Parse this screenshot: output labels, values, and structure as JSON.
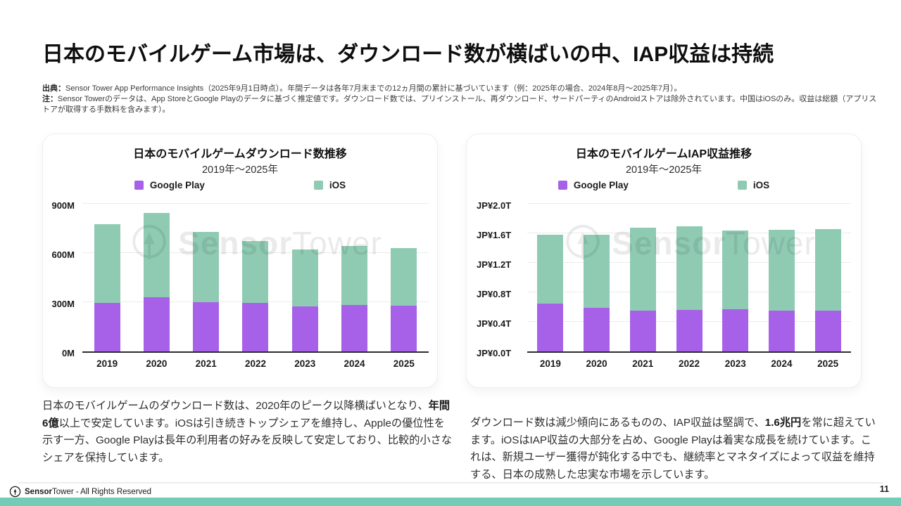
{
  "page": {
    "title": "日本のモバイルゲーム市場は、ダウンロード数が横ばいの中、IAP収益は持続",
    "notes": {
      "source_label": "出典：",
      "source_text": "Sensor Tower App Performance Insights（2025年9月1日時点）。年間データは各年7月末までの12ヵ月間の累計に基づいています（例：2025年の場合、2024年8月～2025年7月）。",
      "note_label": "注：",
      "note_text": "Sensor Towerのデータは、App StoreとGoogle Playのデータに基づく推定値です。ダウンロード数では、プリインストール、再ダウンロード、サードパーティのAndroidストアは除外されています。中国はiOSのみ。収益は総額（アプリストアが取得する手数料を含みます）。"
    },
    "watermark": {
      "bold": "Sensor",
      "light": "Tower"
    },
    "footer": {
      "brand_bold": "Sensor",
      "brand_light": "Tower",
      "rights": "- All Rights Reserved",
      "page_number": "11"
    },
    "colors": {
      "google_play": "#A761E8",
      "ios": "#8FCBB3",
      "bottom_bar": "#73CCB6"
    }
  },
  "paragraphs": {
    "left": {
      "pre": "日本のモバイルゲームのダウンロード数は、2020年のピーク以降横ばいとなり、",
      "bold": "年間6億",
      "post": "以上で安定しています。iOSは引き続きトップシェアを維持し、Appleの優位性を示す一方、Google Playは長年の利用者の好みを反映して安定しており、比較的小さなシェアを保持しています。"
    },
    "right": {
      "pre": "ダウンロード数は減少傾向にあるものの、IAP収益は堅調で、",
      "bold": "1.6兆円",
      "post": "を常に超えています。iOSはIAP収益の大部分を占め、Google Playは着実な成長を続けています。これは、新規ユーザー獲得が鈍化する中でも、継続率とマネタイズによって収益を維持する、日本の成熟した忠実な市場を示しています。"
    }
  },
  "chart_data": [
    {
      "type": "bar",
      "stacked": true,
      "title": "日本のモバイルゲームダウンロード数推移",
      "subtitle": "2019年～2025年",
      "categories": [
        "2019",
        "2020",
        "2021",
        "2022",
        "2023",
        "2024",
        "2025"
      ],
      "series": [
        {
          "name": "Google Play",
          "color": "#A761E8",
          "values": [
            295,
            330,
            300,
            295,
            275,
            285,
            280
          ]
        },
        {
          "name": "iOS",
          "color": "#8FCBB3",
          "values": [
            480,
            515,
            430,
            380,
            345,
            360,
            350
          ]
        }
      ],
      "unit": "M downloads",
      "ylim": [
        0,
        900
      ],
      "yticks": [
        {
          "label": "0M",
          "value": 0
        },
        {
          "label": "300M",
          "value": 300
        },
        {
          "label": "600M",
          "value": 600
        },
        {
          "label": "900M",
          "value": 900
        }
      ],
      "legend_position": "top",
      "grid": true
    },
    {
      "type": "bar",
      "stacked": true,
      "title": "日本のモバイルゲームIAP収益推移",
      "subtitle": "2019年～2025年",
      "categories": [
        "2019",
        "2020",
        "2021",
        "2022",
        "2023",
        "2024",
        "2025"
      ],
      "series": [
        {
          "name": "Google Play",
          "color": "#A761E8",
          "values": [
            0.65,
            0.59,
            0.55,
            0.56,
            0.57,
            0.55,
            0.55
          ]
        },
        {
          "name": "iOS",
          "color": "#8FCBB3",
          "values": [
            0.93,
            0.99,
            1.13,
            1.14,
            1.07,
            1.1,
            1.11
          ]
        }
      ],
      "unit": "JP¥ trillion",
      "ylim": [
        0,
        2.0
      ],
      "yticks": [
        {
          "label": "JP¥0.0T",
          "value": 0
        },
        {
          "label": "JP¥0.4T",
          "value": 0.4
        },
        {
          "label": "JP¥0.8T",
          "value": 0.8
        },
        {
          "label": "JP¥1.2T",
          "value": 1.2
        },
        {
          "label": "JP¥1.6T",
          "value": 1.6
        },
        {
          "label": "JP¥2.0T",
          "value": 2.0
        }
      ],
      "legend_position": "top",
      "grid": true
    }
  ]
}
